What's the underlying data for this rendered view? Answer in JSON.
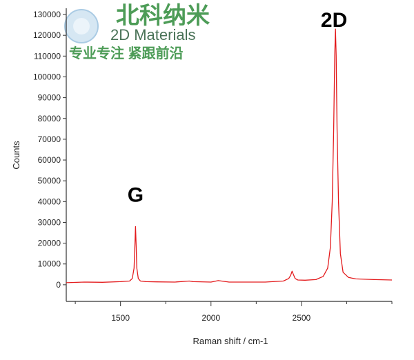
{
  "chart_data": {
    "type": "line",
    "xlabel": "Raman shift / cm-1",
    "ylabel": "Counts",
    "xlim": [
      1200,
      3000
    ],
    "ylim": [
      -8000,
      133000
    ],
    "xticks": [
      1500,
      2000,
      2500
    ],
    "yticks": [
      0,
      10000,
      20000,
      30000,
      40000,
      50000,
      60000,
      70000,
      80000,
      90000,
      100000,
      110000,
      120000,
      130000
    ],
    "grid": false,
    "legend": "none",
    "series": [
      {
        "color": "#e31a1c",
        "x": [
          1200,
          1300,
          1400,
          1500,
          1550,
          1565,
          1575,
          1580,
          1583,
          1586,
          1590,
          1598,
          1610,
          1640,
          1700,
          1800,
          1880,
          1900,
          2000,
          2040,
          2100,
          2200,
          2300,
          2400,
          2430,
          2440,
          2448,
          2455,
          2465,
          2480,
          2520,
          2580,
          2620,
          2645,
          2660,
          2670,
          2678,
          2684,
          2688,
          2692,
          2697,
          2705,
          2715,
          2730,
          2760,
          2800,
          2900,
          3000
        ],
        "y": [
          1000,
          1300,
          1200,
          1500,
          1800,
          3000,
          8000,
          20000,
          28000,
          20000,
          8000,
          3000,
          1800,
          1500,
          1400,
          1300,
          1800,
          1500,
          1300,
          2000,
          1300,
          1300,
          1300,
          1800,
          3000,
          4500,
          6500,
          5000,
          3000,
          2300,
          2200,
          2500,
          4000,
          8000,
          18000,
          40000,
          75000,
          110000,
          123000,
          110000,
          75000,
          40000,
          15000,
          6000,
          3500,
          2800,
          2500,
          2300
        ]
      }
    ],
    "annotations": [
      {
        "text": "G",
        "x": 1583,
        "y": 40000
      },
      {
        "text": "2D",
        "x": 2680,
        "y": 124000
      }
    ]
  },
  "watermark": {
    "chinese_name": "北科纳米",
    "english_name": "2D Materials",
    "slogan": "专业专注 紧跟前沿",
    "color": "#2e8b3a"
  }
}
